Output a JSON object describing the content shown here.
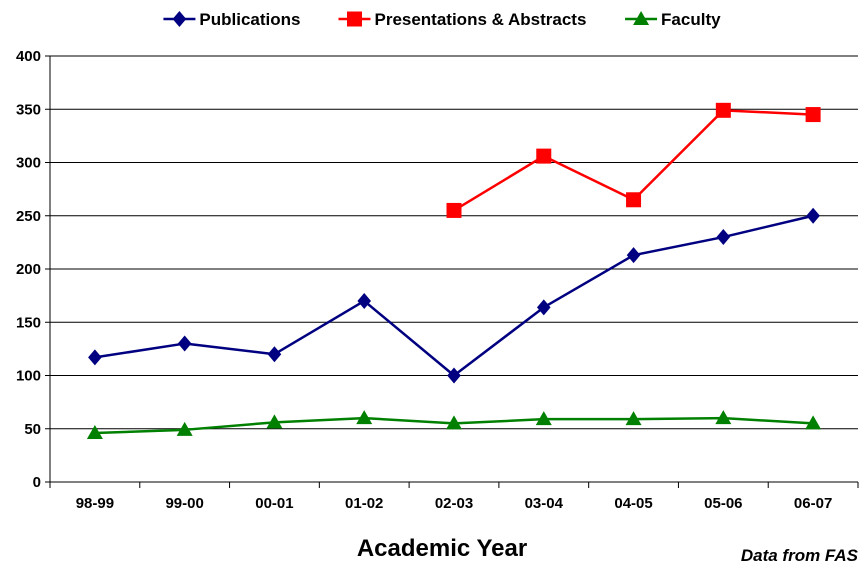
{
  "chart_data": {
    "type": "line",
    "categories": [
      "98-99",
      "99-00",
      "00-01",
      "01-02",
      "02-03",
      "03-04",
      "04-05",
      "05-06",
      "06-07"
    ],
    "series": [
      {
        "name": "Publications",
        "color": "#000080",
        "marker": "diamond",
        "values": [
          117,
          130,
          120,
          170,
          100,
          164,
          213,
          230,
          250
        ]
      },
      {
        "name": "Presentations & Abstracts",
        "color": "#ff0000",
        "marker": "square",
        "values": [
          null,
          null,
          null,
          null,
          255,
          306,
          265,
          349,
          345
        ]
      },
      {
        "name": "Faculty",
        "color": "#008000",
        "marker": "triangle",
        "values": [
          46,
          49,
          56,
          60,
          55,
          59,
          59,
          60,
          55
        ]
      }
    ],
    "xlabel": "Academic Year",
    "ylabel": "",
    "ylim": [
      0,
      400
    ],
    "yticks": [
      0,
      50,
      100,
      150,
      200,
      250,
      300,
      350,
      400
    ],
    "grid": true,
    "legend_position": "top"
  },
  "source_note": "Data from FAS"
}
